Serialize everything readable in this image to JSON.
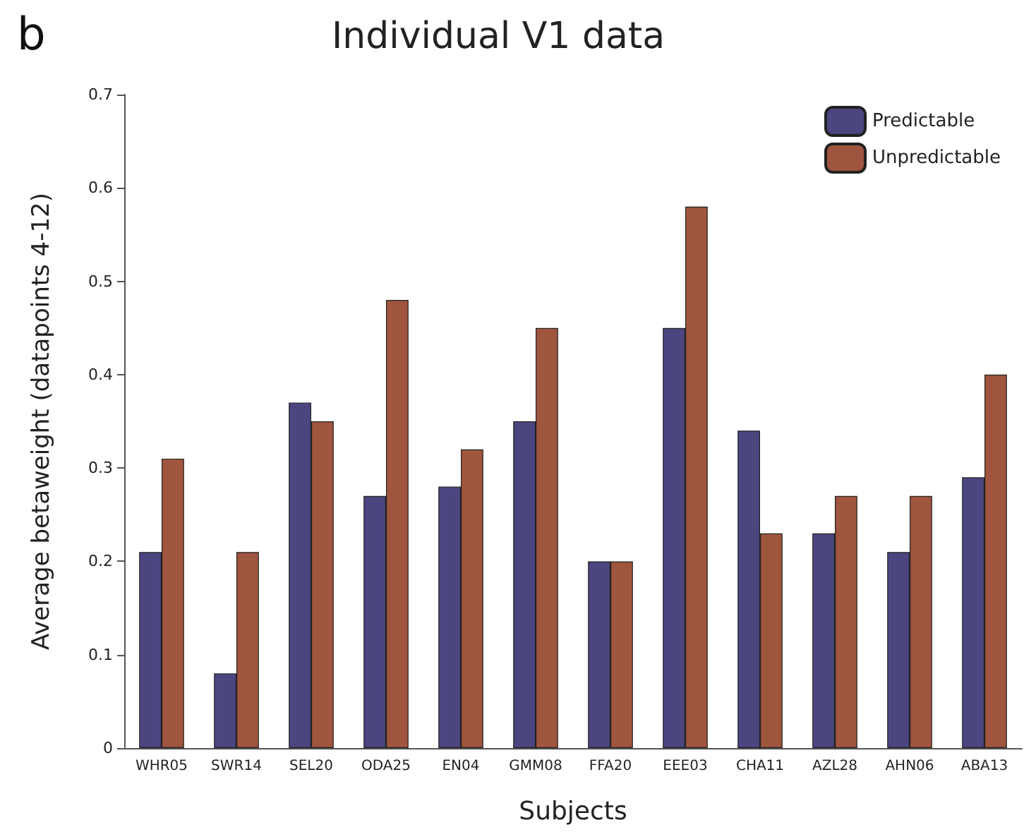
{
  "chart_data": {
    "type": "bar",
    "title": "Individual V1 data",
    "xlabel": "Subjects",
    "ylabel": "Average betaweight (datapoints 4-12)",
    "annotations": [
      "b"
    ],
    "categories": [
      "WHR05",
      "SWR14",
      "SEL20",
      "ODA25",
      "EN04",
      "GMM08",
      "FFA20",
      "EEE03",
      "CHA11",
      "AZL28",
      "AHN06",
      "ABA13"
    ],
    "series": [
      {
        "name": "Predictable",
        "color": "#4b4680",
        "values": [
          0.21,
          0.08,
          0.37,
          0.27,
          0.28,
          0.35,
          0.2,
          0.45,
          0.34,
          0.23,
          0.21,
          0.29
        ]
      },
      {
        "name": "Unpredictable",
        "color": "#a0553f",
        "values": [
          0.31,
          0.21,
          0.35,
          0.48,
          0.32,
          0.45,
          0.2,
          0.58,
          0.23,
          0.27,
          0.27,
          0.4
        ]
      }
    ],
    "ylim": [
      0,
      0.7
    ],
    "yticks": [
      0,
      0.1,
      0.2,
      0.3,
      0.4,
      0.5,
      0.6,
      0.7
    ],
    "grid": false,
    "legend": "top right"
  }
}
